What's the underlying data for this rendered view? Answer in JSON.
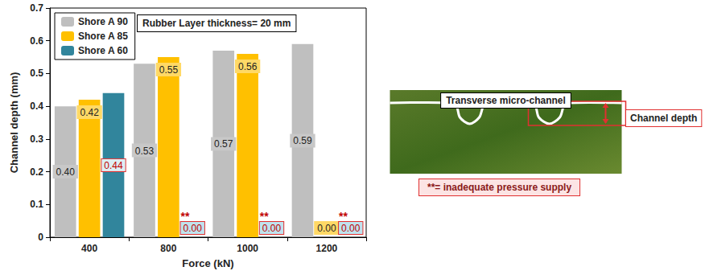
{
  "chart_data": {
    "type": "bar",
    "categories": [
      "400",
      "800",
      "1000",
      "1200"
    ],
    "x_label": "Force (kN)",
    "y_label": "Channel depth (mm)",
    "ylim": [
      0,
      0.7
    ],
    "yticks": [
      0,
      0.1,
      0.2,
      0.3,
      0.4,
      0.5,
      0.6,
      0.7
    ],
    "grid": false,
    "legend": "upper left",
    "data_labels": true,
    "series": [
      {
        "name": "Shore A 90",
        "color": "#BFBFBF",
        "values": [
          0.4,
          0.53,
          0.57,
          0.59
        ],
        "value_labels": [
          "0.40",
          "0.53",
          "0.57",
          "0.59"
        ]
      },
      {
        "name": "Shore A 85",
        "color": "#FFC000",
        "values": [
          0.42,
          0.55,
          0.56,
          0
        ],
        "value_labels": [
          "0.42",
          "0.55",
          "0.56",
          "0.00"
        ]
      },
      {
        "name": "Shore A 60",
        "color": "#31859C",
        "values": [
          0.44,
          0,
          0,
          0
        ],
        "value_labels": [
          "0.44",
          "0.00",
          "0.00",
          "0.00"
        ],
        "flags": [
          null,
          "**",
          "**",
          "**"
        ]
      }
    ],
    "annotation": "Rubber Layer thickness= 20 mm",
    "note": "**= inadequate pressure supply",
    "inset": {
      "title": "Transverse micro-channel",
      "label": "Channel depth"
    }
  }
}
